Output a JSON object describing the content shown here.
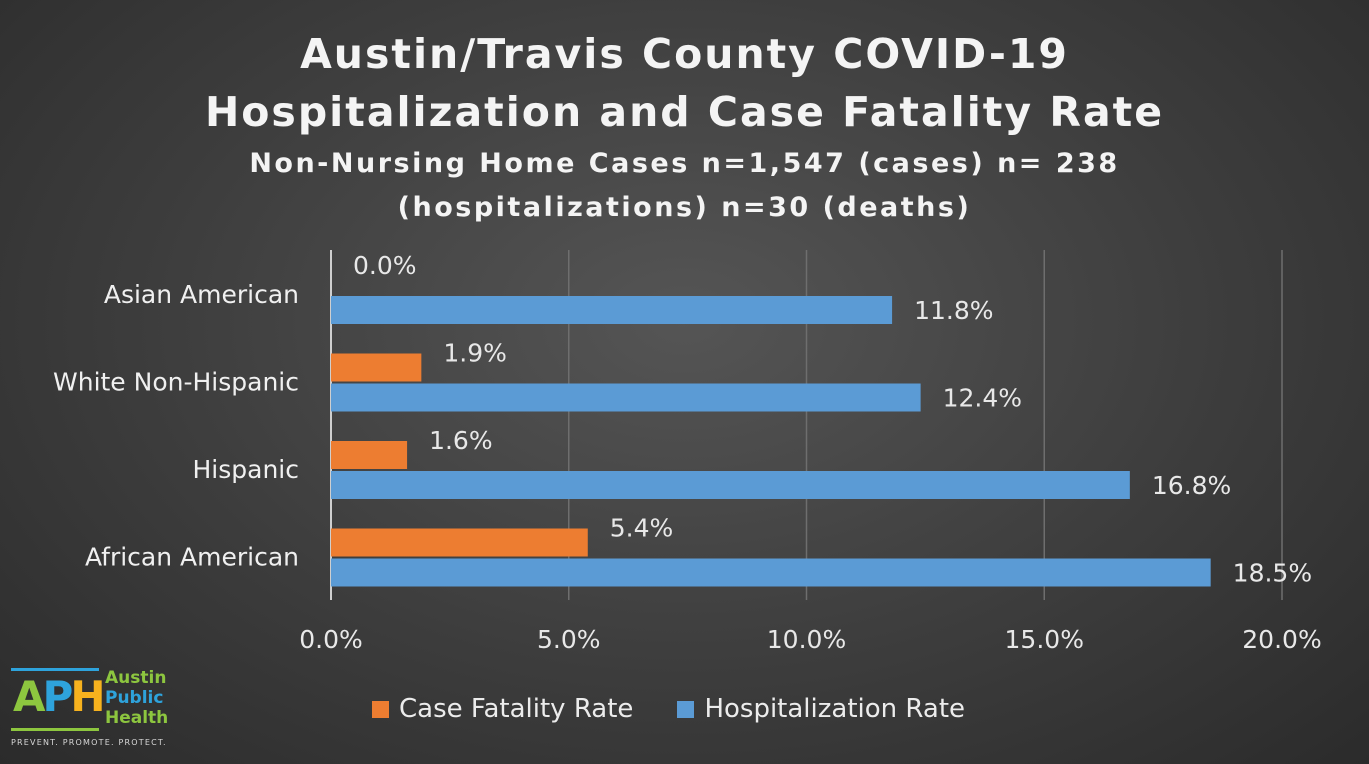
{
  "chart_data": {
    "type": "bar",
    "orientation": "horizontal",
    "title": "Austin/Travis County COVID-19 Hospitalization and Case Fatality Rate",
    "title_lines": [
      "Austin/Travis County COVID-19",
      "Hospitalization and Case Fatality Rate"
    ],
    "subtitle_lines": [
      "Non-Nursing Home Cases n=1,547 (cases) n= 238",
      "(hospitalizations)  n=30 (deaths)"
    ],
    "categories": [
      "Asian American",
      "White Non-Hispanic",
      "Hispanic",
      "African American"
    ],
    "series": [
      {
        "name": "Case Fatality Rate",
        "color": "#ed7d31",
        "values": [
          0.0,
          1.9,
          1.6,
          5.4
        ],
        "labels": [
          "0.0%",
          "1.9%",
          "1.6%",
          "5.4%"
        ]
      },
      {
        "name": "Hospitalization Rate",
        "color": "#5b9bd5",
        "values": [
          11.8,
          12.4,
          16.8,
          18.5
        ],
        "labels": [
          "11.8%",
          "12.4%",
          "16.8%",
          "18.5%"
        ]
      }
    ],
    "xlim": [
      0,
      20
    ],
    "xticks": [
      0,
      5,
      10,
      15,
      20
    ],
    "xtick_labels": [
      "0.0%",
      "5.0%",
      "10.0%",
      "15.0%",
      "20.0%"
    ],
    "xlabel": "",
    "ylabel": "",
    "grid": true,
    "legend_position": "bottom"
  },
  "logo": {
    "mark_a": "A",
    "mark_p": "P",
    "mark_h": "H",
    "word1": "Austin",
    "word2": "Public",
    "word3": "Health",
    "tagline": "PREVENT. PROMOTE. PROTECT.",
    "colors": {
      "green": "#8dc63f",
      "blue": "#2ea3dc",
      "gold": "#f7b21e"
    }
  }
}
